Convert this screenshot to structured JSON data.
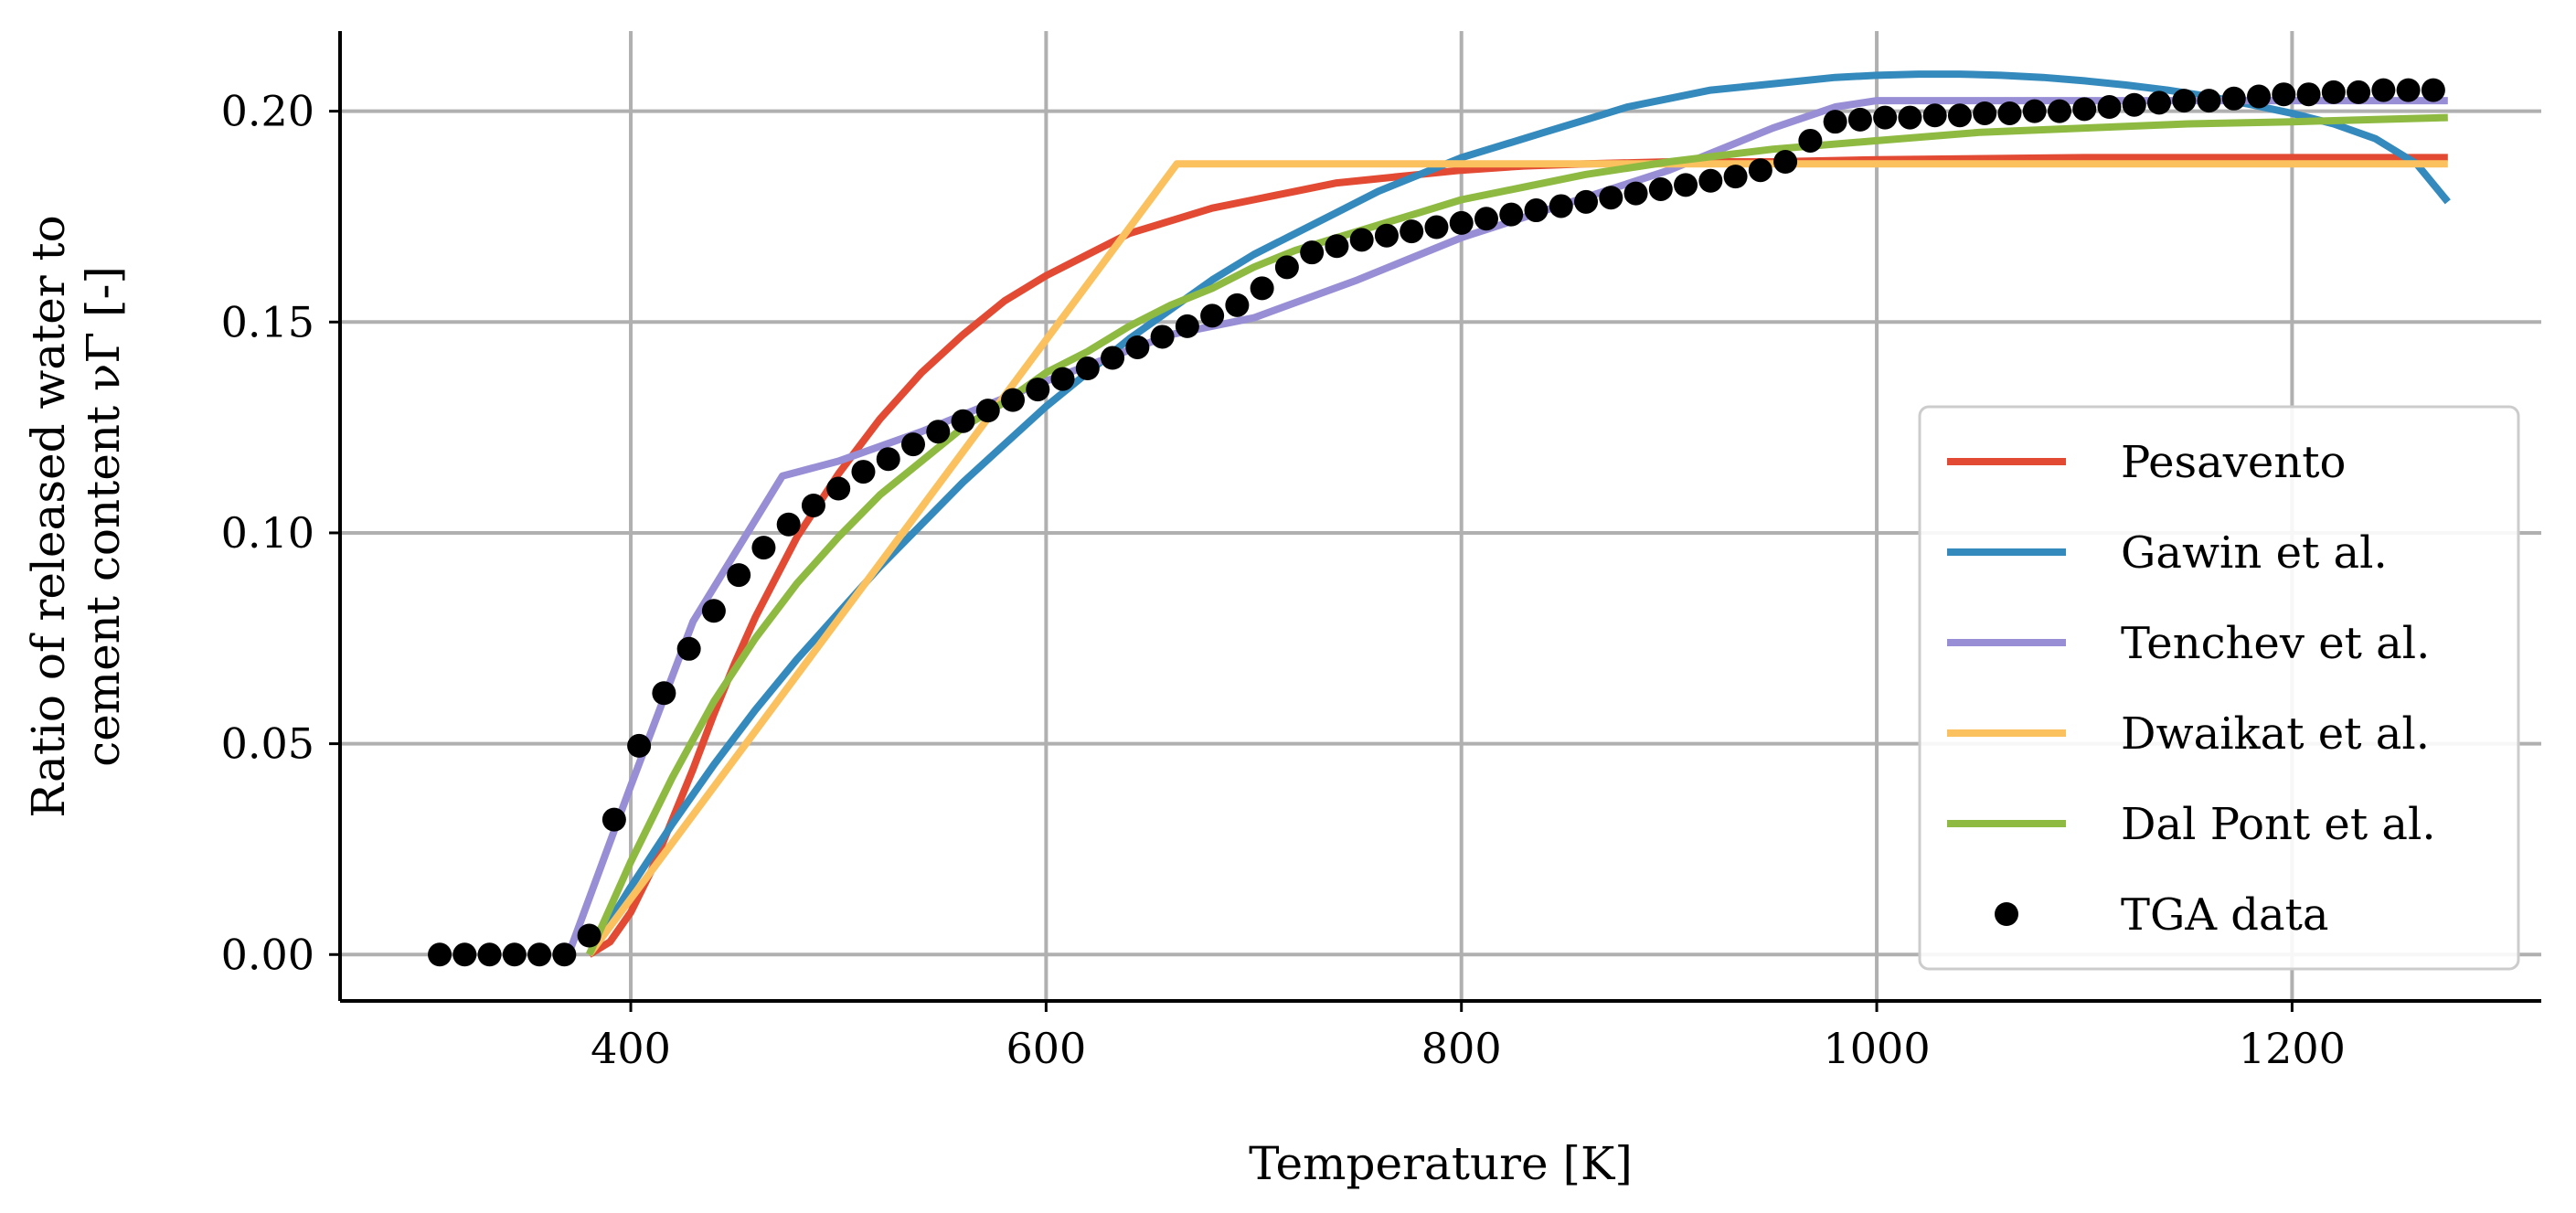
{
  "chart_data": {
    "type": "line",
    "title": "",
    "xlabel": "Temperature [K]",
    "ylabel_line1": "Ratio of released water to",
    "ylabel_line2": "cement content νΓ [-]",
    "xlim": [
      260,
      1320
    ],
    "ylim": [
      -0.011,
      0.219
    ],
    "xticks": [
      400,
      600,
      800,
      1000,
      1200
    ],
    "xtick_labels": [
      "400",
      "600",
      "800",
      "1000",
      "1200"
    ],
    "yticks": [
      0.0,
      0.05,
      0.1,
      0.15,
      0.2
    ],
    "ytick_labels": [
      "0.00",
      "0.05",
      "0.10",
      "0.15",
      "0.20"
    ],
    "grid": true,
    "legend_position": "lower-right",
    "series": [
      {
        "name": "Pesavento",
        "color": "#E24A33",
        "kind": "line",
        "x": [
          380,
          390,
          400,
          410,
          420,
          430,
          440,
          450,
          460,
          480,
          500,
          520,
          540,
          560,
          580,
          600,
          620,
          640,
          660,
          680,
          700,
          720,
          740,
          760,
          780,
          800,
          830,
          860,
          900,
          950,
          1000,
          1100,
          1200,
          1275
        ],
        "y": [
          0.0,
          0.003,
          0.01,
          0.02,
          0.032,
          0.044,
          0.057,
          0.069,
          0.08,
          0.099,
          0.114,
          0.127,
          0.138,
          0.147,
          0.155,
          0.161,
          0.166,
          0.171,
          0.174,
          0.177,
          0.179,
          0.181,
          0.183,
          0.184,
          0.185,
          0.186,
          0.187,
          0.1875,
          0.188,
          0.188,
          0.1885,
          0.189,
          0.189,
          0.189
        ]
      },
      {
        "name": "Gawin et al.",
        "color": "#348ABD",
        "kind": "line",
        "x": [
          380,
          400,
          420,
          440,
          460,
          480,
          500,
          520,
          540,
          560,
          580,
          600,
          620,
          640,
          660,
          680,
          700,
          720,
          740,
          760,
          780,
          800,
          820,
          840,
          860,
          880,
          900,
          920,
          940,
          960,
          980,
          1000,
          1020,
          1040,
          1060,
          1080,
          1100,
          1120,
          1140,
          1160,
          1180,
          1200,
          1220,
          1240,
          1260,
          1275
        ],
        "y": [
          0.0,
          0.016,
          0.031,
          0.045,
          0.058,
          0.07,
          0.081,
          0.092,
          0.102,
          0.112,
          0.121,
          0.13,
          0.138,
          0.146,
          0.153,
          0.16,
          0.166,
          0.171,
          0.176,
          0.181,
          0.185,
          0.189,
          0.192,
          0.195,
          0.198,
          0.201,
          0.203,
          0.205,
          0.206,
          0.207,
          0.208,
          0.2085,
          0.2088,
          0.2088,
          0.2085,
          0.208,
          0.2072,
          0.2062,
          0.205,
          0.2035,
          0.2016,
          0.1995,
          0.197,
          0.1935,
          0.1875,
          0.1785
        ]
      },
      {
        "name": "Tenchev et al.",
        "color": "#988ED5",
        "kind": "line",
        "x": [
          370,
          400,
          430,
          473,
          500,
          540,
          600,
          660,
          700,
          750,
          800,
          850,
          900,
          950,
          980,
          1000,
          1050,
          1100,
          1150,
          1200,
          1275
        ],
        "y": [
          0.0,
          0.04,
          0.079,
          0.1135,
          0.117,
          0.124,
          0.136,
          0.147,
          0.151,
          0.16,
          0.17,
          0.178,
          0.186,
          0.196,
          0.201,
          0.2025,
          0.2025,
          0.2025,
          0.2025,
          0.2025,
          0.2025
        ]
      },
      {
        "name": "Dwaikat et al.",
        "color": "#FBC15E",
        "kind": "line",
        "x": [
          380,
          663,
          700,
          800,
          900,
          1000,
          1100,
          1200,
          1275
        ],
        "y": [
          0.0,
          0.1875,
          0.1875,
          0.1875,
          0.1875,
          0.1875,
          0.1875,
          0.1875,
          0.1875
        ]
      },
      {
        "name": "Dal Pont et al.",
        "color": "#8EBA42",
        "kind": "line",
        "x": [
          380,
          400,
          420,
          440,
          460,
          480,
          500,
          520,
          540,
          560,
          580,
          600,
          620,
          640,
          660,
          680,
          700,
          720,
          740,
          760,
          780,
          800,
          830,
          860,
          900,
          950,
          1000,
          1050,
          1100,
          1150,
          1200,
          1275
        ],
        "y": [
          0.0,
          0.022,
          0.042,
          0.06,
          0.075,
          0.088,
          0.099,
          0.109,
          0.117,
          0.125,
          0.131,
          0.138,
          0.143,
          0.149,
          0.154,
          0.158,
          0.163,
          0.167,
          0.17,
          0.173,
          0.176,
          0.179,
          0.182,
          0.185,
          0.188,
          0.191,
          0.193,
          0.195,
          0.196,
          0.197,
          0.1975,
          0.1985
        ]
      },
      {
        "name": "TGA data",
        "color": "#000000",
        "kind": "markers",
        "x": [
          308,
          320,
          332,
          344,
          356,
          368,
          380,
          392,
          404,
          416,
          428,
          440,
          452,
          464,
          476,
          488,
          500,
          512,
          524,
          536,
          548,
          560,
          572,
          584,
          596,
          608,
          620,
          632,
          644,
          656,
          668,
          680,
          692,
          704,
          716,
          728,
          740,
          752,
          764,
          776,
          788,
          800,
          812,
          824,
          836,
          848,
          860,
          872,
          884,
          896,
          908,
          920,
          932,
          944,
          956,
          968,
          980,
          992,
          1004,
          1016,
          1028,
          1040,
          1052,
          1064,
          1076,
          1088,
          1100,
          1112,
          1124,
          1136,
          1148,
          1160,
          1172,
          1184,
          1196,
          1208,
          1220,
          1232,
          1244,
          1256,
          1268
        ],
        "y": [
          0.0,
          0.0,
          0.0,
          0.0,
          0.0,
          0.0,
          0.0045,
          0.032,
          0.0495,
          0.062,
          0.0725,
          0.0815,
          0.09,
          0.0965,
          0.102,
          0.1065,
          0.1105,
          0.1145,
          0.1175,
          0.121,
          0.124,
          0.1265,
          0.129,
          0.1315,
          0.134,
          0.1365,
          0.139,
          0.1415,
          0.144,
          0.1465,
          0.149,
          0.1515,
          0.154,
          0.158,
          0.163,
          0.1665,
          0.168,
          0.1695,
          0.1705,
          0.1715,
          0.1725,
          0.1735,
          0.1745,
          0.1755,
          0.1765,
          0.1775,
          0.1785,
          0.1795,
          0.1805,
          0.1815,
          0.1825,
          0.1835,
          0.1845,
          0.186,
          0.188,
          0.193,
          0.1975,
          0.198,
          0.1985,
          0.1985,
          0.199,
          0.199,
          0.1995,
          0.1995,
          0.2,
          0.2,
          0.2005,
          0.201,
          0.2015,
          0.202,
          0.2025,
          0.2025,
          0.203,
          0.2035,
          0.204,
          0.204,
          0.2045,
          0.2045,
          0.205,
          0.205,
          0.205
        ]
      }
    ]
  }
}
